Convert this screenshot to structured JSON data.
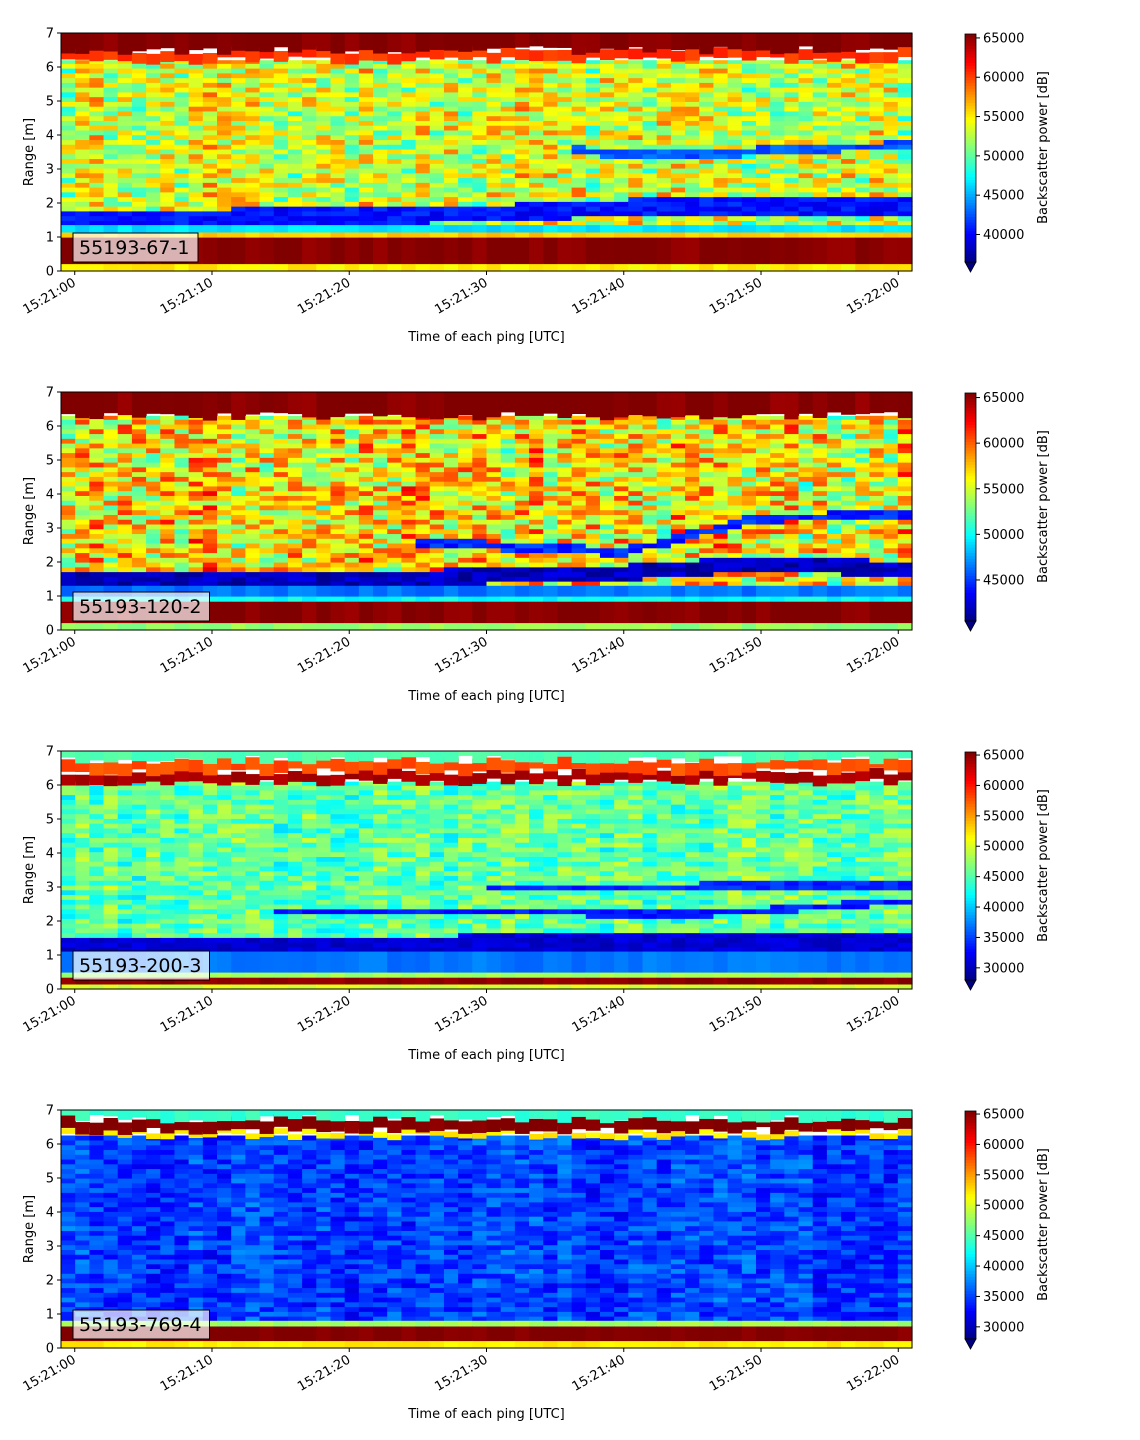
{
  "chart_data": [
    {
      "type": "heatmap",
      "panel_label": "55193-67-1",
      "xlabel": "Time of each ping [UTC]",
      "ylabel": "Range [m]",
      "x_ticks": [
        "15:21:00",
        "15:21:10",
        "15:21:20",
        "15:21:30",
        "15:21:40",
        "15:21:50",
        "15:22:00"
      ],
      "y_ticks": [
        "0",
        "1",
        "2",
        "3",
        "4",
        "5",
        "6",
        "7"
      ],
      "ylim": [
        0,
        7
      ],
      "xlim_seconds": [
        -1,
        61
      ],
      "colorbar": {
        "label": "Backscatter power [dB]",
        "min": 36500,
        "max": 65500,
        "ticks": [
          40000,
          45000,
          50000,
          55000,
          60000,
          65000
        ],
        "extend": "min",
        "colormap": "jet"
      },
      "layers": [
        {
          "y0": 0.0,
          "y1": 0.22,
          "value": 55000
        },
        {
          "y0": 0.22,
          "y1": 1.0,
          "value": 65500
        },
        {
          "y0": 1.0,
          "y1": 1.15,
          "value": 56000
        },
        {
          "y0": 1.15,
          "y1": 1.35,
          "value": 46500
        },
        {
          "y0": 6.2,
          "y1": 6.5,
          "value": 60500
        },
        {
          "y0": 6.5,
          "y1": 7.0,
          "value": 65500
        }
      ],
      "texture": {
        "y0": 1.35,
        "y1": 6.2,
        "mean": 53500,
        "spread": 5500
      },
      "bands": [
        {
          "points": [
            [
              -1,
              1.55
            ],
            [
              15,
              1.6
            ],
            [
              30,
              1.7
            ],
            [
              45,
              1.95
            ],
            [
              61,
              1.9
            ]
          ],
          "width": 0.5,
          "value": 40500
        },
        {
          "points": [
            [
              36,
              3.55
            ],
            [
              45,
              3.4
            ],
            [
              52,
              3.6
            ],
            [
              61,
              3.7
            ]
          ],
          "width": 0.25,
          "value": 42500
        }
      ]
    },
    {
      "type": "heatmap",
      "panel_label": "55193-120-2",
      "xlabel": "Time of each ping [UTC]",
      "ylabel": "Range [m]",
      "x_ticks": [
        "15:21:00",
        "15:21:10",
        "15:21:20",
        "15:21:30",
        "15:21:40",
        "15:21:50",
        "15:22:00"
      ],
      "y_ticks": [
        "0",
        "1",
        "2",
        "3",
        "4",
        "5",
        "6",
        "7"
      ],
      "ylim": [
        0,
        7
      ],
      "xlim_seconds": [
        -1,
        61
      ],
      "colorbar": {
        "label": "Backscatter power [dB]",
        "min": 40500,
        "max": 65500,
        "ticks": [
          45000,
          50000,
          55000,
          60000,
          65000
        ],
        "extend": "min",
        "colormap": "jet"
      },
      "layers": [
        {
          "y0": 0.0,
          "y1": 0.22,
          "value": 53500
        },
        {
          "y0": 0.22,
          "y1": 0.85,
          "value": 65500
        },
        {
          "y0": 0.85,
          "y1": 1.0,
          "value": 50000
        },
        {
          "y0": 1.0,
          "y1": 1.3,
          "value": 46500
        },
        {
          "y0": 6.3,
          "y1": 7.0,
          "value": 65500
        }
      ],
      "texture": {
        "y0": 1.3,
        "y1": 6.3,
        "mean": 56500,
        "spread": 6000
      },
      "bands": [
        {
          "points": [
            [
              -1,
              1.5
            ],
            [
              20,
              1.5
            ],
            [
              40,
              1.7
            ],
            [
              50,
              1.95
            ],
            [
              61,
              1.8
            ]
          ],
          "width": 0.45,
          "value": 42000
        },
        {
          "points": [
            [
              25,
              2.6
            ],
            [
              40,
              2.3
            ],
            [
              50,
              3.3
            ],
            [
              61,
              3.4
            ]
          ],
          "width": 0.25,
          "value": 44500
        }
      ]
    },
    {
      "type": "heatmap",
      "panel_label": "55193-200-3",
      "xlabel": "Time of each ping [UTC]",
      "ylabel": "Range [m]",
      "x_ticks": [
        "15:21:00",
        "15:21:10",
        "15:21:20",
        "15:21:30",
        "15:21:40",
        "15:21:50",
        "15:22:00"
      ],
      "y_ticks": [
        "0",
        "1",
        "2",
        "3",
        "4",
        "5",
        "6",
        "7"
      ],
      "ylim": [
        0,
        7
      ],
      "xlim_seconds": [
        -1,
        61
      ],
      "colorbar": {
        "label": "Backscatter power [dB]",
        "min": 28000,
        "max": 65500,
        "ticks": [
          30000,
          35000,
          40000,
          45000,
          50000,
          55000,
          60000,
          65000
        ],
        "extend": "min",
        "colormap": "jet"
      },
      "layers": [
        {
          "y0": 0.0,
          "y1": 0.15,
          "value": 50000
        },
        {
          "y0": 0.15,
          "y1": 0.35,
          "value": 65000
        },
        {
          "y0": 0.35,
          "y1": 0.5,
          "value": 48000
        },
        {
          "y0": 0.5,
          "y1": 1.1,
          "value": 37000
        },
        {
          "y0": 6.1,
          "y1": 6.4,
          "value": 64000
        },
        {
          "y0": 6.4,
          "y1": 6.75,
          "value": 58000
        },
        {
          "y0": 6.75,
          "y1": 7.0,
          "value": 45000
        }
      ],
      "texture": {
        "y0": 1.1,
        "y1": 6.1,
        "mean": 45500,
        "spread": 4500
      },
      "bands": [
        {
          "points": [
            [
              -1,
              1.2
            ],
            [
              20,
              1.3
            ],
            [
              40,
              1.4
            ],
            [
              61,
              1.4
            ]
          ],
          "width": 0.5,
          "value": 31000
        },
        {
          "points": [
            [
              15,
              2.3
            ],
            [
              30,
              2.3
            ],
            [
              45,
              2.2
            ],
            [
              61,
              2.6
            ]
          ],
          "width": 0.2,
          "value": 33500
        },
        {
          "points": [
            [
              30,
              3.0
            ],
            [
              45,
              3.0
            ],
            [
              61,
              3.1
            ]
          ],
          "width": 0.25,
          "value": 34000
        }
      ]
    },
    {
      "type": "heatmap",
      "panel_label": "55193-769-4",
      "xlabel": "Time of each ping [UTC]",
      "ylabel": "Range [m]",
      "x_ticks": [
        "15:21:00",
        "15:21:10",
        "15:21:20",
        "15:21:30",
        "15:21:40",
        "15:21:50",
        "15:22:00"
      ],
      "y_ticks": [
        "0",
        "1",
        "2",
        "3",
        "4",
        "5",
        "6",
        "7"
      ],
      "ylim": [
        0,
        7
      ],
      "xlim_seconds": [
        -1,
        61
      ],
      "colorbar": {
        "label": "Backscatter power [dB]",
        "min": 28000,
        "max": 65500,
        "ticks": [
          30000,
          35000,
          40000,
          45000,
          50000,
          55000,
          60000,
          65000
        ],
        "extend": "min",
        "colormap": "jet"
      },
      "layers": [
        {
          "y0": 0.0,
          "y1": 0.22,
          "value": 52000
        },
        {
          "y0": 0.22,
          "y1": 0.65,
          "value": 65500
        },
        {
          "y0": 0.65,
          "y1": 0.8,
          "value": 48000
        },
        {
          "y0": 6.25,
          "y1": 6.4,
          "value": 52000
        },
        {
          "y0": 6.4,
          "y1": 6.75,
          "value": 65500
        },
        {
          "y0": 6.75,
          "y1": 7.0,
          "value": 44000
        }
      ],
      "texture": {
        "y0": 0.8,
        "y1": 6.25,
        "mean": 35000,
        "spread": 3200
      },
      "bands": []
    }
  ]
}
